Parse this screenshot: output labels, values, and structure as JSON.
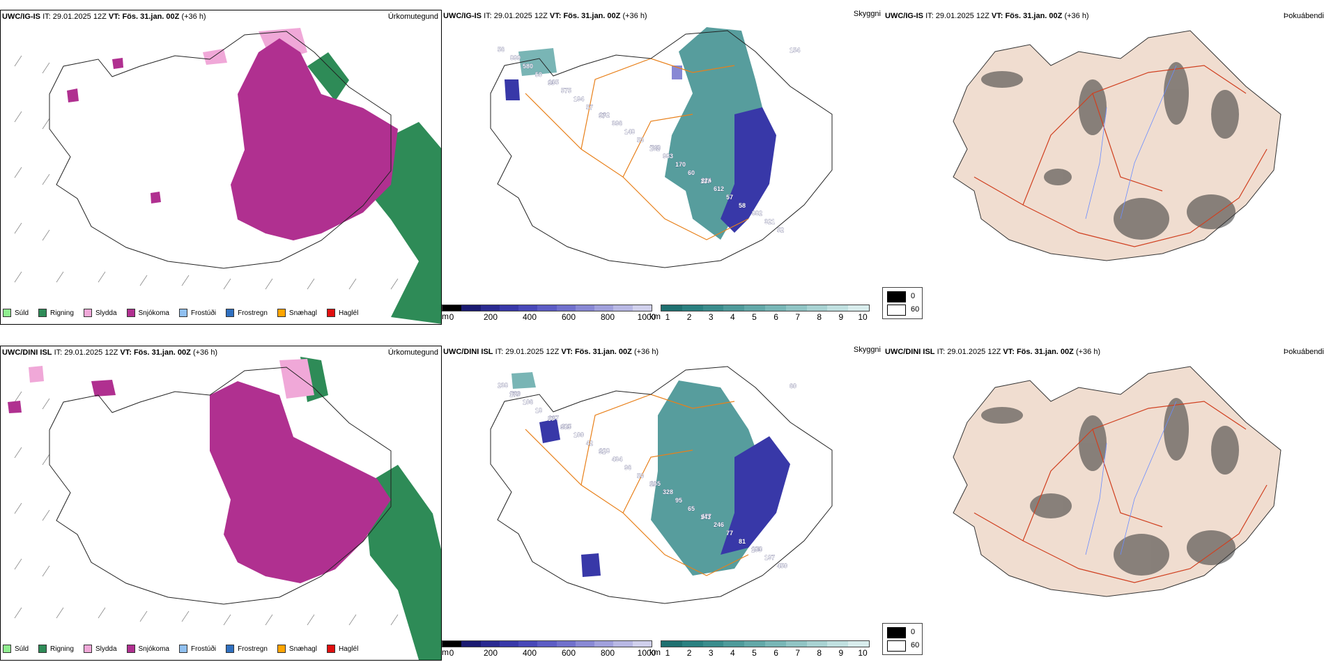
{
  "rows": [
    {
      "model": "UWC/IG-IS",
      "init_label": "IT:",
      "init_time": "29.01.2025 12Z",
      "valid_label": "VT:",
      "valid_time": "Fös. 31.jan. 00Z",
      "lead": "(+36 h)",
      "cloud_labels": [
        "56",
        "105",
        "102",
        "743",
        "324",
        "882",
        "899",
        "575",
        "396",
        "983",
        "612",
        "321",
        "580",
        "194",
        "148",
        "170",
        "57",
        "52",
        "50",
        "57",
        "53",
        "60",
        "58",
        "154",
        "93",
        "97",
        "102",
        "137"
      ]
    },
    {
      "model": "UWC/DINI ISL",
      "init_label": "IT:",
      "init_time": "29.01.2025 12Z",
      "valid_label": "VT:",
      "valid_time": "Fös. 31.jan. 00Z",
      "lead": "(+36 h)",
      "cloud_labels": [
        "238",
        "167",
        "128",
        "165",
        "477",
        "958",
        "500",
        "425",
        "434",
        "328",
        "246",
        "197",
        "106",
        "100",
        "96",
        "95",
        "77",
        "450",
        "18",
        "42",
        "50",
        "65",
        "81",
        "60",
        "57",
        "91",
        "59",
        "143",
        "103",
        "175",
        "983"
      ]
    }
  ],
  "panel_names": {
    "precip": "Úrkomutegund",
    "cloud": "Skyggni",
    "fog": "Þokuábendi"
  },
  "precip_legend": [
    {
      "label": "Súld",
      "color": "#90ee90"
    },
    {
      "label": "Rigning",
      "color": "#2e8b57"
    },
    {
      "label": "Slydda",
      "color": "#f0a8d8"
    },
    {
      "label": "Snjókoma",
      "color": "#b03090"
    },
    {
      "label": "Frostúði",
      "color": "#90c0f0"
    },
    {
      "label": "Frostregn",
      "color": "#3070c0"
    },
    {
      "label": "Snæhagl",
      "color": "#ffa500"
    },
    {
      "label": "Haglél",
      "color": "#e01010"
    }
  ],
  "cloudbase_scale": {
    "unit": "m",
    "ticks": [
      "0",
      "200",
      "400",
      "600",
      "800",
      "1000"
    ],
    "colors": [
      "#000000",
      "#1a1a70",
      "#2a2a90",
      "#3838a8",
      "#4848b8",
      "#5c5cc4",
      "#7070cc",
      "#8888d4",
      "#a0a0dc",
      "#b8b8e4",
      "#d0d0ec"
    ]
  },
  "visibility_scale": {
    "unit": "km",
    "ticks": [
      "1",
      "2",
      "3",
      "4",
      "5",
      "6",
      "7",
      "8",
      "9",
      "10"
    ],
    "colors": [
      "#1f7070",
      "#2a8080",
      "#3a8c8c",
      "#4e9a9a",
      "#62a8a8",
      "#78b6b6",
      "#90c4c4",
      "#a8d2d2",
      "#c0e0e0",
      "#d8ecec"
    ]
  },
  "fog_legend": [
    {
      "label": "0",
      "color": "#000000"
    },
    {
      "label": "60",
      "color": "#ffffff"
    }
  ]
}
